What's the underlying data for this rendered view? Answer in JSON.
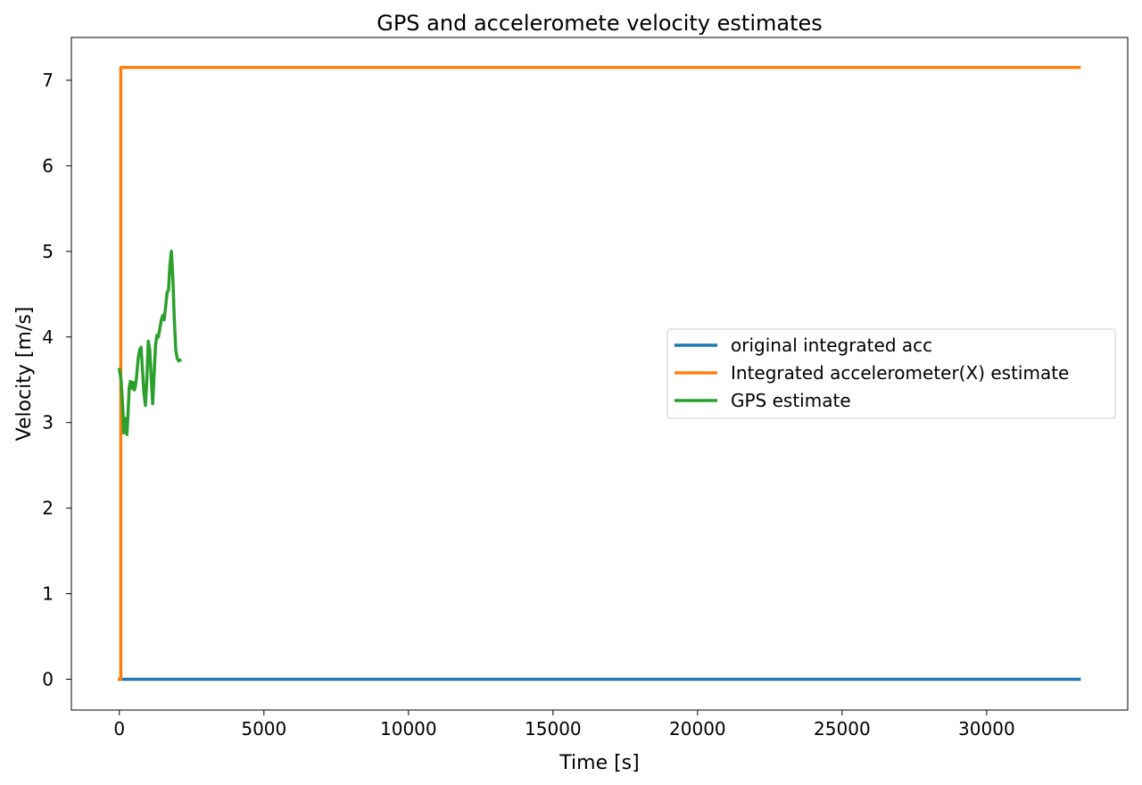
{
  "chart_data": {
    "type": "line",
    "title": "GPS and acceleromete velocity estimates",
    "xlabel": "Time [s]",
    "ylabel": "Velocity [m/s]",
    "xlim": [
      -1660,
      34880
    ],
    "ylim": [
      -0.36,
      7.5
    ],
    "xticks": [
      0,
      5000,
      10000,
      15000,
      20000,
      25000,
      30000
    ],
    "yticks": [
      0,
      1,
      2,
      3,
      4,
      5,
      6,
      7
    ],
    "grid": false,
    "legend_position": "center-right",
    "series": [
      {
        "name": "original integrated acc",
        "color": "#1f77b4",
        "x": [
          0,
          33200
        ],
        "y": [
          0,
          0
        ]
      },
      {
        "name": "Integrated accelerometer(X) estimate",
        "color": "#ff7f0e",
        "x": [
          0,
          50,
          50,
          33200
        ],
        "y": [
          0,
          0,
          7.15,
          7.15
        ]
      },
      {
        "name": "GPS estimate",
        "color": "#2ca02c",
        "x": [
          0,
          60,
          120,
          150,
          190,
          230,
          260,
          300,
          340,
          380,
          420,
          470,
          520,
          560,
          600,
          650,
          700,
          750,
          800,
          850,
          900,
          950,
          1000,
          1050,
          1100,
          1150,
          1200,
          1250,
          1300,
          1350,
          1400,
          1450,
          1500,
          1550,
          1600,
          1650,
          1700,
          1750,
          1800,
          1850,
          1900,
          1950,
          2000,
          2050,
          2100
        ],
        "y": [
          3.62,
          3.5,
          3.15,
          2.88,
          3.05,
          2.92,
          2.86,
          3.1,
          3.4,
          3.48,
          3.4,
          3.47,
          3.38,
          3.43,
          3.55,
          3.75,
          3.85,
          3.88,
          3.62,
          3.35,
          3.2,
          3.5,
          3.95,
          3.85,
          3.55,
          3.22,
          3.55,
          3.9,
          4.02,
          4.0,
          4.1,
          4.2,
          4.25,
          4.2,
          4.35,
          4.52,
          4.55,
          4.85,
          5.0,
          4.7,
          4.2,
          3.85,
          3.75,
          3.72,
          3.73
        ]
      }
    ]
  }
}
